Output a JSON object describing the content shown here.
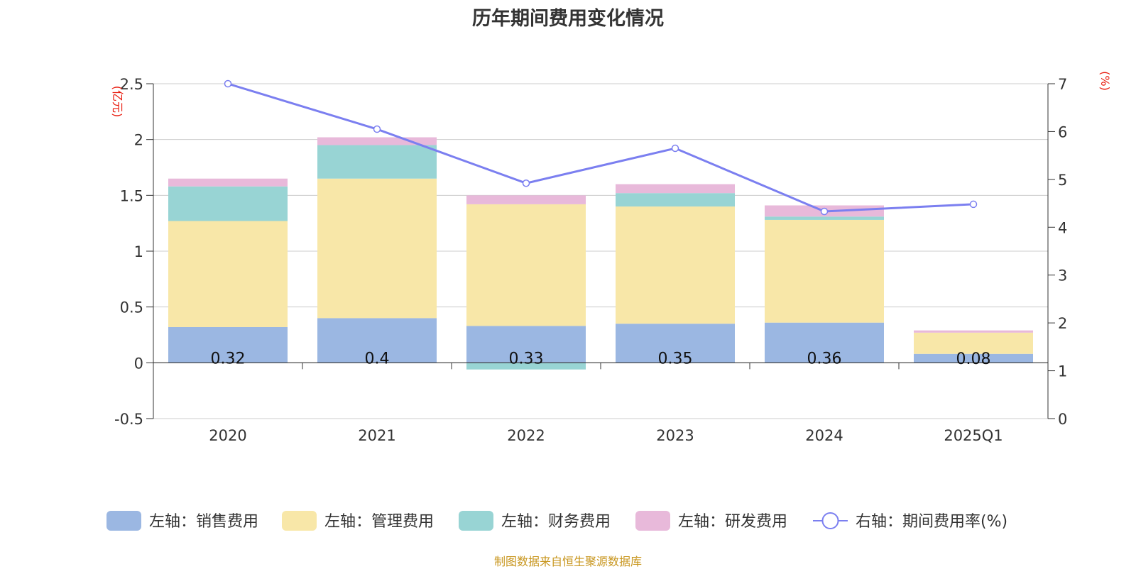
{
  "chart_data": {
    "type": "bar",
    "title": "历年期间费用变化情况",
    "categories": [
      "2020",
      "2021",
      "2022",
      "2023",
      "2024",
      "2025Q1"
    ],
    "left_axis": {
      "unit": "(亿元)",
      "ticks": [
        "-0.5",
        "0",
        "0.5",
        "1",
        "1.5",
        "2",
        "2.5"
      ],
      "ylim": [
        -0.5,
        2.5
      ]
    },
    "right_axis": {
      "unit": "(%)",
      "ticks": [
        "0",
        "1",
        "2",
        "3",
        "4",
        "5",
        "6",
        "7"
      ],
      "ylim": [
        0,
        7
      ]
    },
    "grid": true,
    "legend_position": "bottom",
    "series": [
      {
        "name": "左轴：销售费用",
        "type": "bar",
        "stack": true,
        "axis": "left",
        "color": "#9bb7e2",
        "values": [
          0.32,
          0.4,
          0.33,
          0.35,
          0.36,
          0.08
        ],
        "labels": [
          "0.32",
          "0.4",
          "0.33",
          "0.35",
          "0.36",
          "0.08"
        ]
      },
      {
        "name": "左轴：管理费用",
        "type": "bar",
        "stack": true,
        "axis": "left",
        "color": "#f8e7a8",
        "values": [
          0.95,
          1.25,
          1.09,
          1.05,
          0.92,
          0.19
        ]
      },
      {
        "name": "左轴：财务费用",
        "type": "bar",
        "stack": true,
        "axis": "left",
        "color": "#98d4d4",
        "values": [
          0.31,
          0.3,
          -0.06,
          0.12,
          0.03,
          0.0
        ]
      },
      {
        "name": "左轴：研发费用",
        "type": "bar",
        "stack": true,
        "axis": "left",
        "color": "#e8b9da",
        "values": [
          0.07,
          0.07,
          0.08,
          0.08,
          0.1,
          0.02
        ]
      },
      {
        "name": "右轴：期间费用率(%)",
        "type": "line",
        "axis": "right",
        "color": "#7b7ff0",
        "values": [
          7.0,
          6.05,
          4.92,
          5.65,
          4.33,
          4.48
        ]
      }
    ]
  },
  "footer": {
    "source": "制图数据来自恒生聚源数据库"
  }
}
